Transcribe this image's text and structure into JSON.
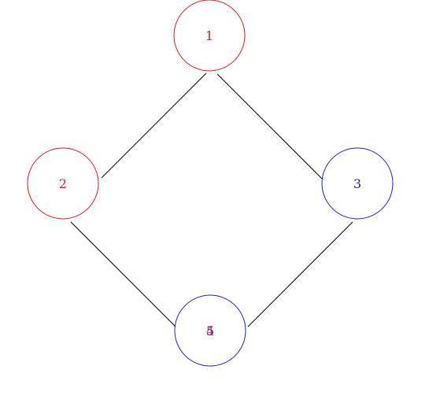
{
  "colors": {
    "red": "#e31a1c",
    "blue": "#1f1fd0",
    "edge": "#000000",
    "background": "#ffffff"
  },
  "nodes": [
    {
      "id": "n1",
      "label": "1",
      "color": "red"
    },
    {
      "id": "n2",
      "label": "2",
      "color": "red"
    },
    {
      "id": "n3",
      "label": "3",
      "color": "blue"
    },
    {
      "id": "n5",
      "label": "5",
      "color": "blue"
    },
    {
      "id": "n4",
      "label": "4",
      "color": "red"
    }
  ],
  "edges": [
    {
      "from": "n1",
      "to": "n2"
    },
    {
      "from": "n1",
      "to": "n3"
    },
    {
      "from": "n2",
      "to": "n4"
    },
    {
      "from": "n3",
      "to": "n5"
    }
  ]
}
